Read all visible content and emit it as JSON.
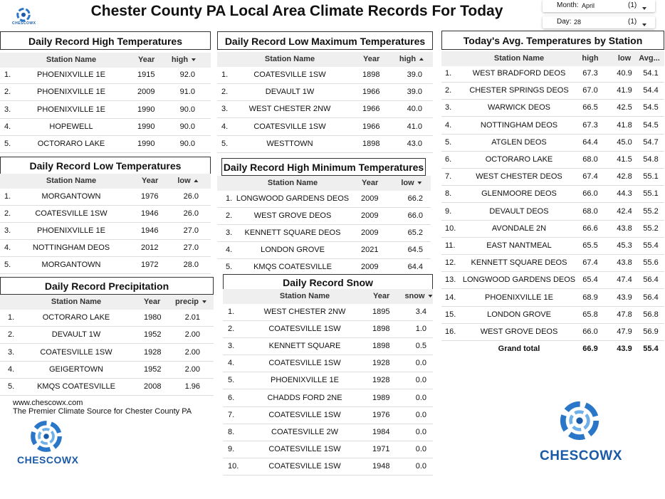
{
  "header": {
    "title": "Chester County PA Local Area Climate Records For Today",
    "logo_text": "CHESCOWX"
  },
  "filters": [
    {
      "label": "Month:",
      "value": "April",
      "count": "(1)"
    },
    {
      "label": "Day:",
      "value": "28",
      "count": "(1)"
    }
  ],
  "tables": [
    {
      "title": "Daily Record High Temperatures",
      "columns": [
        "Station Name",
        "Year",
        "high"
      ],
      "sort_column": 2,
      "sort_direction": "descending",
      "rows": [
        [
          "1.",
          "PHOENIXVILLE 1E",
          "1915",
          "92.0"
        ],
        [
          "2.",
          "PHOENIXVILLE 1E",
          "2009",
          "91.0"
        ],
        [
          "3.",
          "PHOENIXVILLE 1E",
          "1990",
          "90.0"
        ],
        [
          "4.",
          "HOPEWELL",
          "1990",
          "90.0"
        ],
        [
          "5.",
          "OCTORARO LAKE",
          "1990",
          "90.0"
        ]
      ]
    },
    {
      "title": "Daily Record Low Maximum Temperatures",
      "columns": [
        "Station Name",
        "Year",
        "high"
      ],
      "sort_column": 2,
      "sort_direction": "ascending",
      "rows": [
        [
          "1.",
          "COATESVILLE 1SW",
          "1898",
          "39.0"
        ],
        [
          "2.",
          "DEVAULT 1W",
          "1966",
          "39.0"
        ],
        [
          "3.",
          "WEST CHESTER 2NW",
          "1966",
          "40.0"
        ],
        [
          "4.",
          "COATESVILLE 1SW",
          "1966",
          "41.0"
        ],
        [
          "5.",
          "WESTTOWN",
          "1898",
          "43.0"
        ]
      ]
    },
    {
      "title": "Daily Record Low Temperatures",
      "columns": [
        "Station Name",
        "Year",
        "low"
      ],
      "sort_column": 2,
      "sort_direction": "ascending",
      "rows": [
        [
          "1.",
          "MORGANTOWN",
          "1976",
          "26.0"
        ],
        [
          "2.",
          "COATESVILLE 1SW",
          "1946",
          "26.0"
        ],
        [
          "3.",
          "PHOENIXVILLE 1E",
          "1946",
          "27.0"
        ],
        [
          "4.",
          "NOTTINGHAM DEOS",
          "2012",
          "27.0"
        ],
        [
          "5.",
          "MORGANTOWN",
          "1972",
          "28.0"
        ]
      ]
    },
    {
      "title": "Daily Record High Minimum Temperatures",
      "columns": [
        "Station Name",
        "Year",
        "low"
      ],
      "sort_column": 2,
      "sort_direction": "descending",
      "rows": [
        [
          "1.",
          "LONGWOOD GARDENS DEOS",
          "2009",
          "66.2"
        ],
        [
          "2.",
          "WEST GROVE DEOS",
          "2009",
          "66.0"
        ],
        [
          "3.",
          "KENNETT SQUARE DEOS",
          "2009",
          "65.2"
        ],
        [
          "4.",
          "LONDON GROVE",
          "2021",
          "64.5"
        ],
        [
          "5.",
          "KMQS COATESVILLE",
          "2009",
          "64.4"
        ]
      ]
    },
    {
      "title": "Daily Record Precipitation",
      "columns": [
        "Station Name",
        "Year",
        "precip"
      ],
      "sort_column": 2,
      "sort_direction": "descending",
      "rows": [
        [
          "1.",
          "OCTORARO LAKE",
          "1980",
          "2.01"
        ],
        [
          "2.",
          "DEVAULT 1W",
          "1952",
          "2.00"
        ],
        [
          "3.",
          "COATESVILLE 1SW",
          "1928",
          "2.00"
        ],
        [
          "4.",
          "GEIGERTOWN",
          "1952",
          "2.00"
        ],
        [
          "5.",
          "KMQS COATESVILLE",
          "2008",
          "1.96"
        ]
      ]
    },
    {
      "title": "Daily Record Snow",
      "columns": [
        "Station Name",
        "Year",
        "snow"
      ],
      "sort_column": 2,
      "sort_direction": "descending",
      "rows": [
        [
          "1.",
          "WEST CHESTER 2NW",
          "1895",
          "3.4"
        ],
        [
          "2.",
          "COATESVILLE 1SW",
          "1898",
          "1.0"
        ],
        [
          "3.",
          "KENNETT SQUARE",
          "1898",
          "0.5"
        ],
        [
          "4.",
          "COATESVILLE 1SW",
          "1928",
          "0.0"
        ],
        [
          "5.",
          "PHOENIXVILLE 1E",
          "1928",
          "0.0"
        ],
        [
          "6.",
          "CHADDS FORD 2NE",
          "1989",
          "0.0"
        ],
        [
          "7.",
          "COATESVILLE 1SW",
          "1976",
          "0.0"
        ],
        [
          "8.",
          "COATESVILLE 2W",
          "1984",
          "0.0"
        ],
        [
          "9.",
          "COATESVILLE 1SW",
          "1971",
          "0.0"
        ],
        [
          "10.",
          "COATESVILLE 1SW",
          "1948",
          "0.0"
        ]
      ]
    },
    {
      "title": "Today's Avg. Temperatures by Station",
      "columns": [
        "Station Name",
        "high",
        "low",
        "Avg..."
      ],
      "rows": [
        [
          "1.",
          "WEST BRADFORD DEOS",
          "67.3",
          "40.9",
          "54.1"
        ],
        [
          "2.",
          "CHESTER SPRINGS DEOS",
          "67.0",
          "41.9",
          "54.4"
        ],
        [
          "3.",
          "WARWICK DEOS",
          "66.5",
          "42.5",
          "54.5"
        ],
        [
          "4.",
          "NOTTINGHAM DEOS",
          "67.3",
          "41.8",
          "54.5"
        ],
        [
          "5.",
          "ATGLEN DEOS",
          "64.4",
          "45.0",
          "54.7"
        ],
        [
          "6.",
          "OCTORARO LAKE",
          "68.0",
          "41.5",
          "54.8"
        ],
        [
          "7.",
          "WEST CHESTER DEOS",
          "67.4",
          "42.8",
          "55.1"
        ],
        [
          "8.",
          "GLENMOORE DEOS",
          "66.0",
          "44.3",
          "55.1"
        ],
        [
          "9.",
          "DEVAULT DEOS",
          "68.0",
          "42.4",
          "55.2"
        ],
        [
          "10.",
          "AVONDALE 2N",
          "66.6",
          "43.8",
          "55.2"
        ],
        [
          "11.",
          "EAST NANTMEAL",
          "65.5",
          "45.3",
          "55.4"
        ],
        [
          "12.",
          "KENNETT SQUARE DEOS",
          "67.4",
          "43.8",
          "55.6"
        ],
        [
          "13.",
          "LONGWOOD GARDENS DEOS",
          "65.4",
          "47.4",
          "56.4"
        ],
        [
          "14.",
          "PHOENIXVILLE 1E",
          "68.9",
          "43.9",
          "56.4"
        ],
        [
          "15.",
          "LONDON GROVE",
          "65.8",
          "47.8",
          "56.8"
        ],
        [
          "16.",
          "WEST GROVE DEOS",
          "66.0",
          "47.9",
          "56.9"
        ]
      ],
      "total": [
        "Grand total",
        "66.9",
        "43.9",
        "55.4"
      ]
    }
  ],
  "footer": {
    "website": "www.chescowx.com",
    "tagline": "The Premier Climate Source for Chester County PA",
    "logo_text": "CHESCOWX"
  }
}
